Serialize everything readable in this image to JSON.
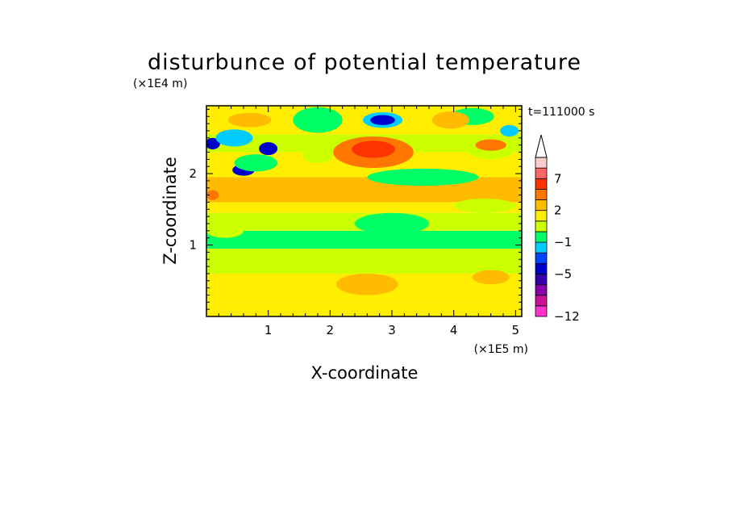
{
  "chart_data": {
    "type": "heatmap",
    "title": "disturbunce of potential temperature",
    "xlabel": "X-coordinate",
    "ylabel": "Z-coordinate",
    "x_unit": "(×1E5 m)",
    "y_unit": "(×1E4 m)",
    "time_label": "t=111000 s",
    "xlim": [
      0,
      5.1
    ],
    "ylim": [
      0,
      2.95
    ],
    "x_ticks": [
      {
        "value": 1,
        "label": "1"
      },
      {
        "value": 2,
        "label": "2"
      },
      {
        "value": 3,
        "label": "3"
      },
      {
        "value": 4,
        "label": "4"
      },
      {
        "value": 5,
        "label": "5"
      }
    ],
    "y_ticks": [
      {
        "value": 1,
        "label": "1"
      },
      {
        "value": 2,
        "label": "2"
      }
    ],
    "colorbar": {
      "levels": [
        -12,
        -10,
        -8,
        -7,
        -5,
        -4,
        -3,
        -1,
        0,
        1,
        2,
        3,
        5,
        7,
        8,
        10
      ],
      "colors": [
        "#ff33cc",
        "#cc1199",
        "#8800aa",
        "#3300aa",
        "#0000cc",
        "#0044ff",
        "#00ccff",
        "#00ff66",
        "#ccff00",
        "#ffee00",
        "#ffbb00",
        "#ff7700",
        "#ff3300",
        "#ff6666",
        "#ffcccc"
      ],
      "extend": "max",
      "labels": [
        {
          "value": -12,
          "label": "−12"
        },
        {
          "value": -5,
          "label": "−5"
        },
        {
          "value": -1,
          "label": "−1"
        },
        {
          "value": 2,
          "label": "2"
        },
        {
          "value": 7,
          "label": "7"
        }
      ]
    },
    "bands": [
      {
        "z0": 0.0,
        "z1": 0.2,
        "level": 1
      },
      {
        "z0": 0.2,
        "z1": 0.6,
        "level": 1
      },
      {
        "z0": 0.6,
        "z1": 0.75,
        "level": 0
      },
      {
        "z0": 0.75,
        "z1": 0.95,
        "level": 0
      },
      {
        "z0": 0.95,
        "z1": 1.2,
        "level": -1
      },
      {
        "z0": 1.2,
        "z1": 1.45,
        "level": 0
      },
      {
        "z0": 1.45,
        "z1": 1.6,
        "level": 1
      },
      {
        "z0": 1.6,
        "z1": 1.95,
        "level": 2
      },
      {
        "z0": 1.95,
        "z1": 2.3,
        "level": 1
      },
      {
        "z0": 2.3,
        "z1": 2.55,
        "level": 0
      },
      {
        "z0": 2.55,
        "z1": 2.95,
        "level": 1
      }
    ],
    "blobs": [
      {
        "x": 2.7,
        "z": 2.3,
        "rx": 0.65,
        "rz": 0.22,
        "level": 3
      },
      {
        "x": 2.7,
        "z": 2.34,
        "rx": 0.35,
        "rz": 0.12,
        "level": 5
      },
      {
        "x": 3.5,
        "z": 1.95,
        "rx": 0.9,
        "rz": 0.12,
        "level": -1
      },
      {
        "x": 2.85,
        "z": 2.75,
        "rx": 0.32,
        "rz": 0.11,
        "level": -3
      },
      {
        "x": 2.85,
        "z": 2.75,
        "rx": 0.2,
        "rz": 0.07,
        "level": -5
      },
      {
        "x": 0.1,
        "z": 2.42,
        "rx": 0.12,
        "rz": 0.08,
        "level": -5
      },
      {
        "x": 1.0,
        "z": 2.35,
        "rx": 0.15,
        "rz": 0.09,
        "level": -5
      },
      {
        "x": 0.6,
        "z": 2.05,
        "rx": 0.18,
        "rz": 0.08,
        "level": -5
      },
      {
        "x": 0.45,
        "z": 2.5,
        "rx": 0.3,
        "rz": 0.12,
        "level": -3
      },
      {
        "x": 0.8,
        "z": 2.15,
        "rx": 0.35,
        "rz": 0.12,
        "level": -1
      },
      {
        "x": 0.7,
        "z": 2.75,
        "rx": 0.35,
        "rz": 0.1,
        "level": 2
      },
      {
        "x": 0.8,
        "z": 1.75,
        "rx": 0.5,
        "rz": 0.1,
        "level": 2
      },
      {
        "x": 0.1,
        "z": 1.7,
        "rx": 0.1,
        "rz": 0.07,
        "level": 3
      },
      {
        "x": 1.8,
        "z": 2.75,
        "rx": 0.4,
        "rz": 0.18,
        "level": -1
      },
      {
        "x": 1.8,
        "z": 2.25,
        "rx": 0.25,
        "rz": 0.1,
        "level": 0
      },
      {
        "x": 4.3,
        "z": 2.8,
        "rx": 0.35,
        "rz": 0.12,
        "level": -1
      },
      {
        "x": 4.6,
        "z": 2.35,
        "rx": 0.4,
        "rz": 0.15,
        "level": 0
      },
      {
        "x": 4.6,
        "z": 2.4,
        "rx": 0.25,
        "rz": 0.08,
        "level": 3
      },
      {
        "x": 4.9,
        "z": 2.6,
        "rx": 0.15,
        "rz": 0.08,
        "level": -3
      },
      {
        "x": 3.95,
        "z": 2.75,
        "rx": 0.3,
        "rz": 0.12,
        "level": 2
      },
      {
        "x": 4.5,
        "z": 1.55,
        "rx": 0.5,
        "rz": 0.1,
        "level": 0
      },
      {
        "x": 0.3,
        "z": 1.2,
        "rx": 0.3,
        "rz": 0.1,
        "level": 0
      },
      {
        "x": 3.0,
        "z": 1.3,
        "rx": 0.6,
        "rz": 0.15,
        "level": -1
      },
      {
        "x": 2.6,
        "z": 0.45,
        "rx": 0.5,
        "rz": 0.15,
        "level": 2
      },
      {
        "x": 4.6,
        "z": 0.55,
        "rx": 0.3,
        "rz": 0.1,
        "level": 2
      }
    ]
  }
}
